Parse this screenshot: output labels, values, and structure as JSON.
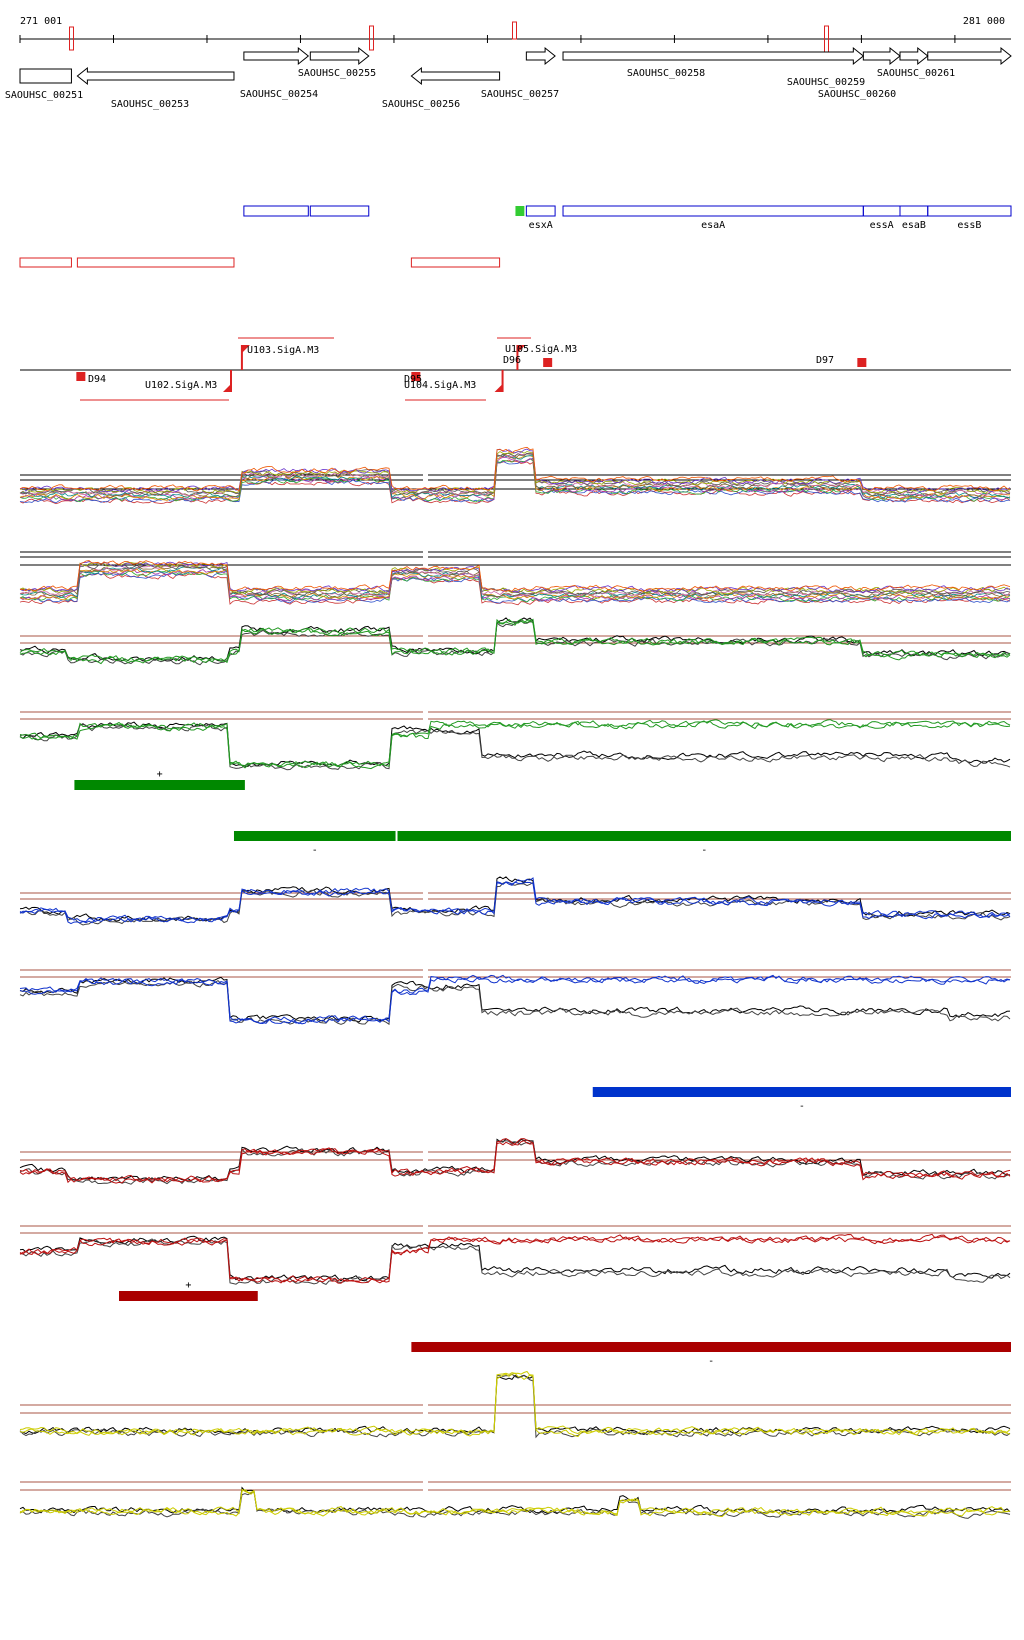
{
  "coordinates": {
    "start_label": "271 001",
    "end_label": "281 000",
    "start": 271001,
    "end": 281000
  },
  "genes": [
    {
      "id": "SAOUHSC_00251",
      "start": 271001,
      "end": 271520,
      "strand": "+"
    },
    {
      "id": "SAOUHSC_00253",
      "start": 271580,
      "end": 273160,
      "strand": "-"
    },
    {
      "id": "SAOUHSC_00254",
      "start": 273260,
      "end": 273910,
      "strand": "+"
    },
    {
      "id": "SAOUHSC_00255",
      "start": 273930,
      "end": 274520,
      "strand": "+"
    },
    {
      "id": "SAOUHSC_00256",
      "start": 274950,
      "end": 275840,
      "strand": "-"
    },
    {
      "id": "SAOUHSC_00257",
      "start": 276110,
      "end": 276400,
      "strand": "+"
    },
    {
      "id": "SAOUHSC_00258",
      "start": 276480,
      "end": 279510,
      "strand": "+"
    },
    {
      "id": "SAOUHSC_00259",
      "start": 279510,
      "end": 279880,
      "strand": "+"
    },
    {
      "id": "SAOUHSC_00260",
      "start": 279880,
      "end": 280160,
      "strand": "+"
    },
    {
      "id": "SAOUHSC_00261",
      "start": 280160,
      "end": 281000,
      "strand": "+"
    }
  ],
  "features": {
    "blue": [
      {
        "label": "",
        "start": 273260,
        "end": 273910
      },
      {
        "label": "",
        "start": 273930,
        "end": 274520
      },
      {
        "label": "esxA",
        "start": 276110,
        "end": 276400
      },
      {
        "label": "esaA",
        "start": 276480,
        "end": 279510
      },
      {
        "label": "essA",
        "start": 279510,
        "end": 279880
      },
      {
        "label": "esaB",
        "start": 279880,
        "end": 280160
      },
      {
        "label": "essB",
        "start": 280160,
        "end": 281000
      }
    ],
    "green_box": {
      "start": 276000,
      "end": 276090
    },
    "red": [
      {
        "start": 271001,
        "end": 271520
      },
      {
        "start": 271580,
        "end": 273160
      },
      {
        "start": 274950,
        "end": 275840
      }
    ]
  },
  "promoters": [
    {
      "label": "U102.SigA.M3",
      "pos": 273130,
      "strand": "-"
    },
    {
      "label": "U103.SigA.M3",
      "pos": 273240,
      "strand": "+"
    },
    {
      "label": "U104.SigA.M3",
      "pos": 275870,
      "strand": "-"
    },
    {
      "label": "U105.SigA.M3",
      "pos": 276020,
      "strand": "+"
    }
  ],
  "terminators": [
    {
      "label": "D94",
      "pos": 271610,
      "strand": "-"
    },
    {
      "label": "D95",
      "pos": 274990,
      "strand": "-"
    },
    {
      "label": "D96",
      "pos": 276320,
      "strand": "+"
    },
    {
      "label": "D97",
      "pos": 279490,
      "strand": "+"
    }
  ],
  "segments": {
    "green": [
      {
        "strand": "+",
        "start": 271550,
        "end": 273270
      },
      {
        "strand": "-",
        "start": 273160,
        "end": 274790
      },
      {
        "strand": "-",
        "start": 274810,
        "end": 281000
      }
    ],
    "blue": [
      {
        "strand": "-",
        "start": 276780,
        "end": 281000
      }
    ],
    "red": [
      {
        "strand": "+",
        "start": 272000,
        "end": 273400
      },
      {
        "strand": "-",
        "start": 274950,
        "end": 281000
      }
    ]
  },
  "colors": {
    "gene_outline": "#000000",
    "feature_blue": "#0000cc",
    "feature_red": "#dd2222",
    "bar_green": "#008800",
    "bar_blue": "#0033cc",
    "bar_red": "#aa0000",
    "trace_green": "#229922",
    "trace_blue": "#1133cc",
    "trace_red": "#bb1111",
    "trace_yellow": "#cccc00",
    "threshold": "#aa5544"
  }
}
